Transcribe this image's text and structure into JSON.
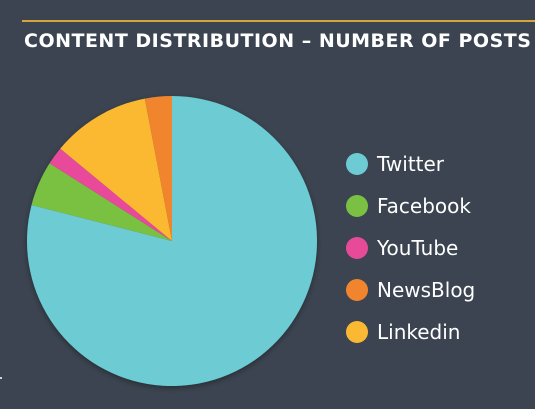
{
  "title": "CONTENT DISTRIBUTION – NUMBER OF POSTS",
  "colors": {
    "background": "#3b4450",
    "accent_rule": "#d4a63a"
  },
  "chart_data": {
    "type": "pie",
    "title": "CONTENT DISTRIBUTION – NUMBER OF POSTS",
    "start_angle_deg": 0,
    "direction": "clockwise",
    "legend_position": "right",
    "slices": [
      {
        "label": "Twitter",
        "value": 79,
        "color": "#6ccbd3"
      },
      {
        "label": "Facebook",
        "value": 5,
        "color": "#7ac143"
      },
      {
        "label": "YouTube",
        "value": 2,
        "color": "#e84a9a"
      },
      {
        "label": "NewsBlog",
        "value": 3,
        "color": "#f0852d"
      },
      {
        "label": "Linkedin",
        "value": 11,
        "color": "#fbb933"
      }
    ],
    "draw_order": [
      "Twitter",
      "Facebook",
      "YouTube",
      "Linkedin",
      "NewsBlog"
    ]
  }
}
